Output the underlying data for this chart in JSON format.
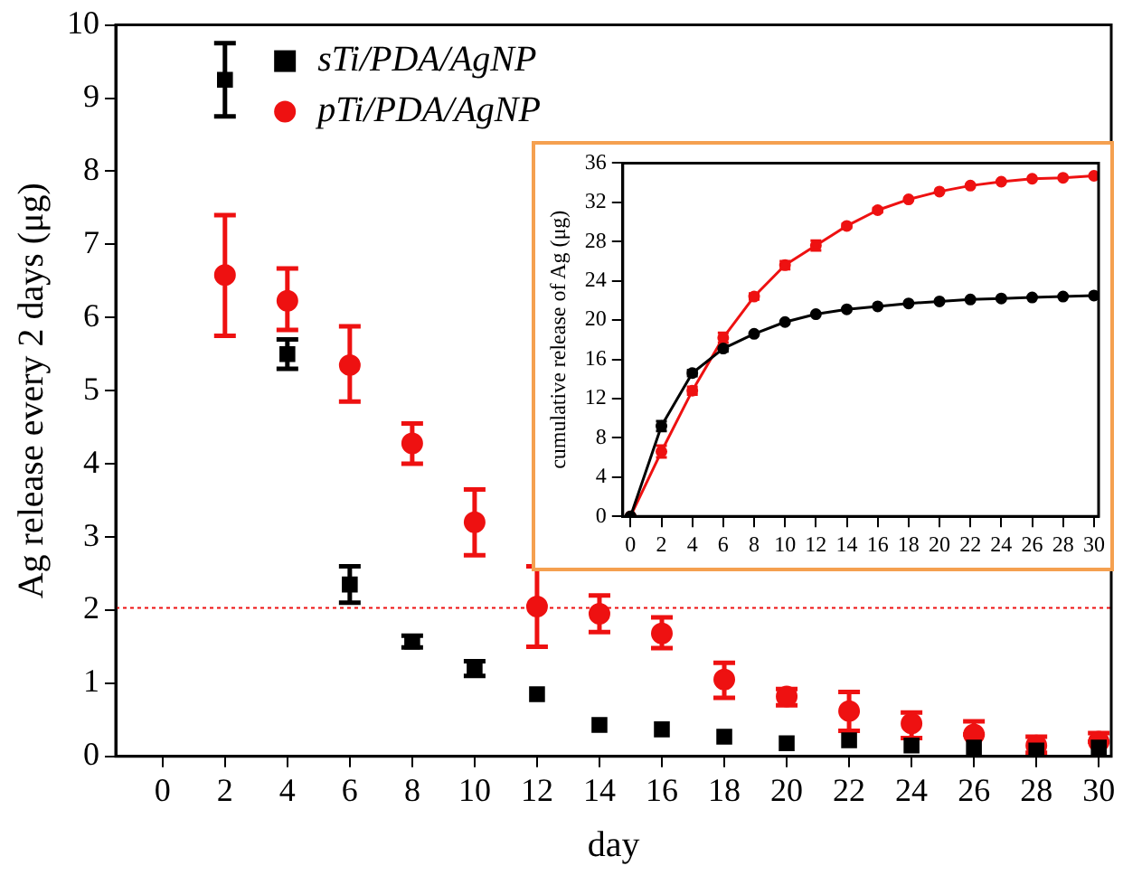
{
  "chart_data": [
    {
      "type": "scatter",
      "xlabel": "day",
      "ylabel": "Ag release every 2 days (μg)",
      "x": [
        2,
        4,
        6,
        8,
        10,
        12,
        14,
        16,
        18,
        20,
        22,
        24,
        26,
        28,
        30
      ],
      "xlim": [
        -1.5,
        30.4
      ],
      "xticks": [
        0,
        2,
        4,
        6,
        8,
        10,
        12,
        14,
        16,
        18,
        20,
        22,
        24,
        26,
        28,
        30
      ],
      "ylim": [
        0,
        10
      ],
      "yticks": [
        0,
        1,
        2,
        3,
        4,
        5,
        6,
        7,
        8,
        9,
        10
      ],
      "grid": false,
      "legend": "top left",
      "series": [
        {
          "name": "sTi/PDA/AgNP",
          "color": "#000000",
          "marker": "square",
          "values": [
            9.25,
            5.5,
            2.35,
            1.57,
            1.2,
            0.85,
            0.43,
            0.37,
            0.27,
            0.18,
            0.22,
            0.15,
            0.12,
            0.08,
            0.12
          ],
          "errors": [
            0.5,
            0.2,
            0.25,
            0.08,
            0.1,
            null,
            null,
            null,
            null,
            null,
            null,
            null,
            null,
            null,
            null
          ]
        },
        {
          "name": "pTi/PDA/AgNP",
          "color": "#ee1111",
          "marker": "circle",
          "values": [
            6.58,
            6.23,
            5.35,
            4.28,
            3.2,
            2.05,
            1.95,
            1.68,
            1.05,
            0.82,
            0.62,
            0.45,
            0.3,
            0.15,
            0.2
          ],
          "errors": [
            [
              5.75,
              7.4
            ],
            [
              5.83,
              6.67
            ],
            [
              4.85,
              5.88
            ],
            [
              4.0,
              4.55
            ],
            [
              2.75,
              3.65
            ],
            [
              1.5,
              2.6
            ],
            [
              1.7,
              2.2
            ],
            [
              1.48,
              1.9
            ],
            [
              0.8,
              1.28
            ],
            [
              0.7,
              0.92
            ],
            [
              0.35,
              0.88
            ],
            [
              0.25,
              0.6
            ],
            [
              0.3,
              0.48
            ],
            [
              0.05,
              0.27
            ],
            [
              0.2,
              0.32
            ]
          ]
        }
      ],
      "ref_lines": [
        {
          "axis": "y",
          "value": 2.03,
          "color": "#ee1111",
          "line_style": "dotted"
        }
      ]
    },
    {
      "type": "line",
      "ylabel": "cumulative release of Ag (μg)",
      "x": [
        0,
        2,
        4,
        6,
        8,
        10,
        12,
        14,
        16,
        18,
        20,
        22,
        24,
        26,
        28,
        30
      ],
      "xlim": [
        -0.5,
        30.3
      ],
      "xticks": [
        0,
        2,
        4,
        6,
        8,
        10,
        12,
        14,
        16,
        18,
        20,
        22,
        24,
        26,
        28,
        30
      ],
      "ylim": [
        0,
        36
      ],
      "yticks": [
        0,
        4,
        8,
        12,
        16,
        20,
        24,
        28,
        32,
        36
      ],
      "grid": false,
      "marker": "circle",
      "series": [
        {
          "color": "#000000",
          "values": [
            0,
            9.2,
            14.6,
            17.1,
            18.6,
            19.8,
            20.6,
            21.1,
            21.4,
            21.7,
            21.9,
            22.1,
            22.2,
            22.3,
            22.4,
            22.5
          ],
          "errors": [
            null,
            0.5,
            0.3,
            0.3,
            null,
            null,
            null,
            null,
            null,
            null,
            null,
            null,
            null,
            null,
            null,
            null
          ]
        },
        {
          "color": "#ee1111",
          "values": [
            0,
            6.6,
            12.8,
            18.2,
            22.4,
            25.6,
            27.6,
            29.6,
            31.2,
            32.3,
            33.1,
            33.7,
            34.1,
            34.4,
            34.5,
            34.7
          ],
          "errors": [
            null,
            0.6,
            0.4,
            0.5,
            0.3,
            0.4,
            0.5,
            0.2,
            0.2,
            null,
            null,
            null,
            null,
            null,
            null,
            null
          ]
        }
      ]
    }
  ]
}
